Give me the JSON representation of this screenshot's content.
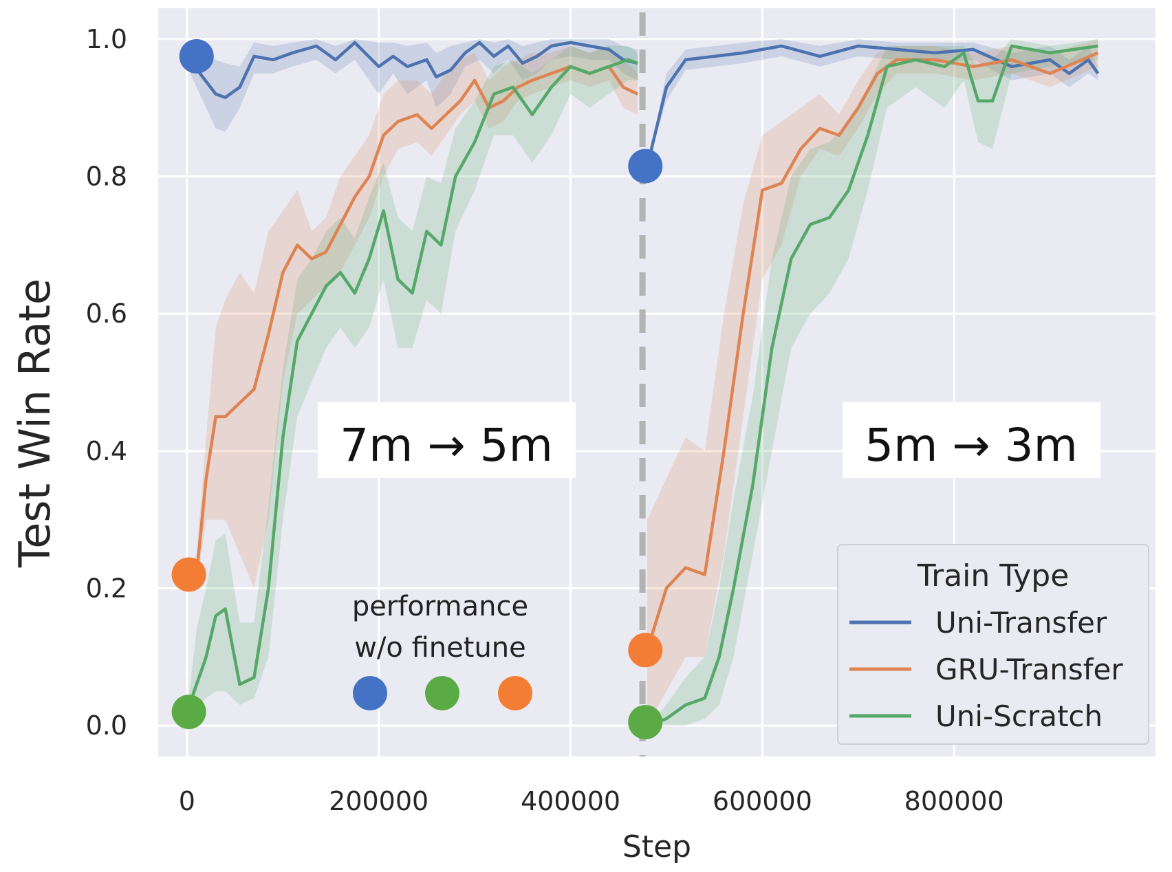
{
  "chart_data": {
    "type": "line",
    "xlabel": "Step",
    "ylabel": "Test Win Rate",
    "xlim": [
      -30000,
      1010000
    ],
    "ylim": [
      -0.045,
      1.045
    ],
    "xticks": [
      0,
      200000,
      400000,
      600000,
      800000
    ],
    "xtick_labels": [
      "0",
      "200000",
      "400000",
      "600000",
      "800000"
    ],
    "yticks": [
      0.0,
      0.2,
      0.4,
      0.6,
      0.8,
      1.0
    ],
    "ytick_labels": [
      "0.0",
      "0.2",
      "0.4",
      "0.6",
      "0.8",
      "1.0"
    ],
    "grid": true,
    "background": "#eaeaf2",
    "divider_x": 475000,
    "legend": {
      "title": "Train Type",
      "placement": "lower-right"
    },
    "annotations": {
      "left_transfer": "7m → 5m",
      "right_transfer": "5m → 3m",
      "note_line1": "performance",
      "note_line2": "w/o finetune"
    },
    "series": [
      {
        "name": "Uni-Transfer",
        "color": "#4c72b0",
        "x": [
          0,
          30000,
          40000,
          55000,
          70000,
          90000,
          110000,
          135000,
          155000,
          175000,
          200000,
          215000,
          230000,
          250000,
          260000,
          275000,
          290000,
          305000,
          320000,
          335000,
          350000,
          365000,
          380000,
          400000,
          420000,
          440000,
          455000,
          470000,
          480000,
          500000,
          520000,
          550000,
          580000,
          620000,
          660000,
          700000,
          740000,
          780000,
          820000,
          860000,
          880000,
          900000,
          920000,
          940000,
          950000
        ],
        "y": [
          0.975,
          0.92,
          0.915,
          0.93,
          0.975,
          0.97,
          0.98,
          0.99,
          0.97,
          0.995,
          0.96,
          0.975,
          0.96,
          0.97,
          0.945,
          0.955,
          0.98,
          0.995,
          0.975,
          0.99,
          0.965,
          0.975,
          0.99,
          0.995,
          0.99,
          0.985,
          0.97,
          0.965,
          0.815,
          0.93,
          0.97,
          0.975,
          0.98,
          0.99,
          0.975,
          0.99,
          0.985,
          0.98,
          0.985,
          0.96,
          0.965,
          0.97,
          0.95,
          0.97,
          0.95
        ],
        "band_lower": [
          0.96,
          0.87,
          0.865,
          0.9,
          0.95,
          0.95,
          0.96,
          0.97,
          0.95,
          0.97,
          0.92,
          0.95,
          0.92,
          0.94,
          0.9,
          0.92,
          0.96,
          0.97,
          0.95,
          0.97,
          0.94,
          0.95,
          0.97,
          0.975,
          0.97,
          0.97,
          0.95,
          0.94,
          0.815,
          0.91,
          0.955,
          0.96,
          0.965,
          0.975,
          0.96,
          0.975,
          0.97,
          0.965,
          0.97,
          0.94,
          0.945,
          0.95,
          0.93,
          0.95,
          0.94
        ],
        "band_upper": [
          0.99,
          0.97,
          0.965,
          0.96,
          0.995,
          0.99,
          0.995,
          1.0,
          0.99,
          1.0,
          0.995,
          0.995,
          0.99,
          0.995,
          0.98,
          0.99,
          0.995,
          1.0,
          0.995,
          1.0,
          0.99,
          0.995,
          1.0,
          1.0,
          1.0,
          1.0,
          0.99,
          0.985,
          0.815,
          0.95,
          0.985,
          0.99,
          0.995,
          1.0,
          0.99,
          1.0,
          0.995,
          0.995,
          0.995,
          0.98,
          0.985,
          0.99,
          0.97,
          0.99,
          0.96
        ],
        "marker_before_finetune": [
          {
            "x": 10000,
            "y": 0.975
          },
          {
            "x": 478000,
            "y": 0.815
          }
        ]
      },
      {
        "name": "GRU-Transfer",
        "color": "#dd8452",
        "x": [
          0,
          10000,
          20000,
          30000,
          40000,
          55000,
          70000,
          85000,
          100000,
          115000,
          130000,
          145000,
          160000,
          175000,
          190000,
          205000,
          220000,
          240000,
          255000,
          270000,
          285000,
          300000,
          315000,
          330000,
          345000,
          360000,
          380000,
          400000,
          420000,
          440000,
          455000,
          470000,
          480000,
          500000,
          520000,
          540000,
          560000,
          580000,
          600000,
          620000,
          640000,
          660000,
          680000,
          700000,
          720000,
          740000,
          780000,
          820000,
          860000,
          900000,
          950000
        ],
        "y": [
          0.22,
          0.22,
          0.36,
          0.45,
          0.45,
          0.47,
          0.49,
          0.57,
          0.66,
          0.7,
          0.68,
          0.69,
          0.73,
          0.77,
          0.8,
          0.86,
          0.88,
          0.89,
          0.87,
          0.89,
          0.91,
          0.94,
          0.9,
          0.91,
          0.93,
          0.94,
          0.95,
          0.96,
          0.95,
          0.96,
          0.93,
          0.92,
          0.11,
          0.2,
          0.23,
          0.22,
          0.4,
          0.6,
          0.78,
          0.79,
          0.84,
          0.87,
          0.86,
          0.9,
          0.95,
          0.97,
          0.97,
          0.96,
          0.97,
          0.95,
          0.98
        ],
        "band_lower": [
          0.22,
          0.2,
          0.3,
          0.3,
          0.3,
          0.25,
          0.2,
          0.3,
          0.5,
          0.6,
          0.62,
          0.64,
          0.66,
          0.7,
          0.74,
          0.8,
          0.84,
          0.85,
          0.83,
          0.86,
          0.89,
          0.91,
          0.87,
          0.88,
          0.91,
          0.92,
          0.93,
          0.94,
          0.93,
          0.94,
          0.9,
          0.89,
          0.0,
          0.05,
          0.1,
          0.1,
          0.25,
          0.45,
          0.65,
          0.7,
          0.8,
          0.84,
          0.83,
          0.87,
          0.92,
          0.95,
          0.95,
          0.94,
          0.95,
          0.93,
          0.96
        ],
        "band_upper": [
          0.22,
          0.25,
          0.42,
          0.58,
          0.62,
          0.66,
          0.63,
          0.72,
          0.75,
          0.78,
          0.72,
          0.74,
          0.8,
          0.83,
          0.86,
          0.92,
          0.94,
          0.94,
          0.92,
          0.95,
          0.97,
          0.98,
          0.94,
          0.96,
          0.97,
          0.98,
          0.98,
          0.99,
          0.98,
          0.99,
          0.97,
          0.95,
          0.3,
          0.36,
          0.42,
          0.4,
          0.6,
          0.76,
          0.86,
          0.88,
          0.9,
          0.92,
          0.89,
          0.94,
          0.98,
          0.99,
          0.99,
          0.98,
          0.99,
          0.98,
          1.0
        ],
        "marker_before_finetune": [
          {
            "x": 2000,
            "y": 0.22
          },
          {
            "x": 478000,
            "y": 0.11
          }
        ]
      },
      {
        "name": "Uni-Scratch",
        "color": "#55a868",
        "x": [
          0,
          10000,
          20000,
          30000,
          40000,
          55000,
          70000,
          85000,
          100000,
          115000,
          130000,
          145000,
          160000,
          175000,
          190000,
          205000,
          220000,
          235000,
          250000,
          265000,
          280000,
          300000,
          320000,
          340000,
          360000,
          380000,
          400000,
          420000,
          440000,
          460000,
          470000,
          480000,
          500000,
          520000,
          540000,
          555000,
          570000,
          590000,
          610000,
          630000,
          650000,
          670000,
          690000,
          710000,
          730000,
          760000,
          790000,
          810000,
          825000,
          840000,
          860000,
          900000,
          950000
        ],
        "y": [
          0.02,
          0.06,
          0.1,
          0.16,
          0.17,
          0.06,
          0.07,
          0.2,
          0.42,
          0.56,
          0.6,
          0.64,
          0.66,
          0.63,
          0.68,
          0.75,
          0.65,
          0.63,
          0.72,
          0.7,
          0.8,
          0.85,
          0.92,
          0.93,
          0.89,
          0.93,
          0.96,
          0.95,
          0.96,
          0.97,
          0.965,
          0.0,
          0.01,
          0.03,
          0.04,
          0.1,
          0.2,
          0.35,
          0.55,
          0.68,
          0.73,
          0.74,
          0.78,
          0.86,
          0.96,
          0.97,
          0.96,
          0.98,
          0.91,
          0.91,
          0.99,
          0.98,
          0.99
        ],
        "band_lower": [
          0.02,
          0.03,
          0.04,
          0.05,
          0.05,
          0.03,
          0.04,
          0.1,
          0.3,
          0.45,
          0.5,
          0.55,
          0.58,
          0.55,
          0.58,
          0.65,
          0.55,
          0.55,
          0.62,
          0.6,
          0.72,
          0.78,
          0.86,
          0.86,
          0.82,
          0.86,
          0.92,
          0.9,
          0.92,
          0.94,
          0.94,
          0.0,
          0.0,
          0.0,
          0.01,
          0.03,
          0.1,
          0.25,
          0.4,
          0.55,
          0.6,
          0.63,
          0.68,
          0.78,
          0.9,
          0.93,
          0.9,
          0.94,
          0.85,
          0.84,
          0.95,
          0.96,
          0.97
        ],
        "band_upper": [
          0.02,
          0.14,
          0.2,
          0.27,
          0.28,
          0.15,
          0.15,
          0.32,
          0.52,
          0.65,
          0.68,
          0.72,
          0.74,
          0.71,
          0.77,
          0.82,
          0.74,
          0.72,
          0.8,
          0.79,
          0.87,
          0.91,
          0.96,
          0.97,
          0.95,
          0.97,
          0.99,
          0.98,
          0.99,
          0.99,
          0.98,
          0.0,
          0.03,
          0.07,
          0.1,
          0.2,
          0.33,
          0.48,
          0.68,
          0.8,
          0.84,
          0.85,
          0.88,
          0.93,
          0.99,
          0.99,
          0.99,
          0.99,
          0.96,
          0.97,
          1.0,
          0.99,
          1.0
        ],
        "marker_before_finetune": [
          {
            "x": 2000,
            "y": 0.02
          },
          {
            "x": 478000,
            "y": 0.005
          }
        ]
      }
    ]
  }
}
